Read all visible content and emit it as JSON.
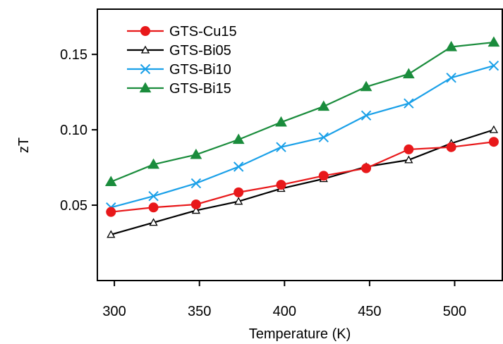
{
  "chart_data": {
    "type": "line",
    "title": "",
    "xlabel": "Temperature (K)",
    "ylabel": "zT",
    "xlim": [
      290,
      528
    ],
    "ylim": [
      0.0,
      0.18
    ],
    "xticks": [
      300,
      350,
      400,
      450,
      500
    ],
    "xtick_labels": [
      "300",
      "350",
      "400",
      "450",
      "500"
    ],
    "yticks": [
      0.05,
      0.1,
      0.15
    ],
    "ytick_labels": [
      "0.05",
      "0.10",
      "0.15"
    ],
    "grid": false,
    "legend_position": "top-left",
    "x": [
      298,
      323,
      348,
      373,
      398,
      423,
      448,
      473,
      498,
      523
    ],
    "series": [
      {
        "name": "GTS-Cu15",
        "color": "#e8181a",
        "marker": "filled-circle",
        "values": [
          0.0455,
          0.0485,
          0.0505,
          0.0585,
          0.0635,
          0.0695,
          0.0745,
          0.087,
          0.0885,
          0.092
        ]
      },
      {
        "name": "GTS-Bi05",
        "color": "#000000",
        "marker": "open-triangle",
        "values": [
          0.0305,
          0.0385,
          0.0465,
          0.0525,
          0.061,
          0.0675,
          0.0755,
          0.08,
          0.091,
          0.1
        ]
      },
      {
        "name": "GTS-Bi10",
        "color": "#1aa0e8",
        "marker": "cross",
        "values": [
          0.0485,
          0.056,
          0.0645,
          0.0755,
          0.0885,
          0.095,
          0.1095,
          0.1175,
          0.1345,
          0.1425
        ]
      },
      {
        "name": "GTS-Bi15",
        "color": "#1a8c3c",
        "marker": "filled-triangle",
        "values": [
          0.0655,
          0.077,
          0.0835,
          0.0935,
          0.105,
          0.1155,
          0.1285,
          0.137,
          0.155,
          0.158
        ]
      }
    ]
  }
}
